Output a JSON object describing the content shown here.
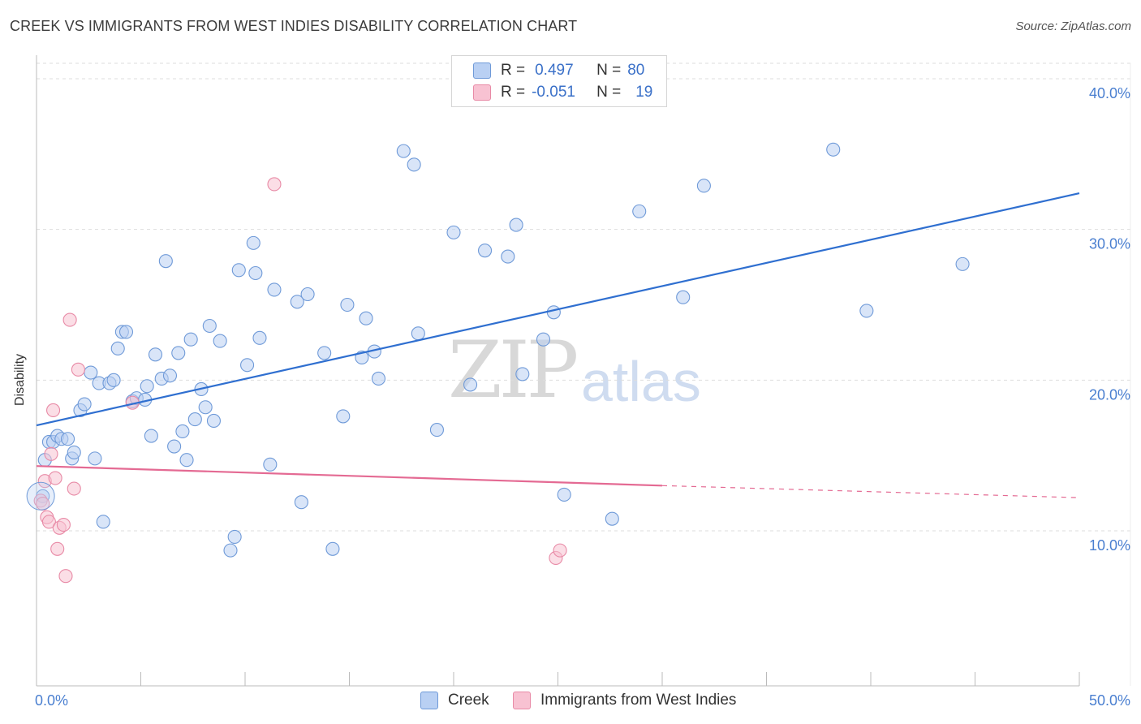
{
  "title": "CREEK VS IMMIGRANTS FROM WEST INDIES DISABILITY CORRELATION CHART",
  "source": "Source: ZipAtlas.com",
  "watermark": {
    "zip": "ZIP",
    "atlas": "atlas"
  },
  "legend": {
    "rows": [
      {
        "r_label": "R =",
        "r_value": "0.497",
        "n_label": "N =",
        "n_value": "80"
      },
      {
        "r_label": "R =",
        "r_value": "-0.051",
        "n_label": "N =",
        "n_value": "19"
      }
    ]
  },
  "bottom_legend": [
    "Creek",
    "Immigrants from West Indies"
  ],
  "colors": {
    "creek_fill": "#b9d0f3",
    "creek_stroke": "#6f9ad8",
    "creek_line": "#2f6fd0",
    "wi_fill": "#f8c2d2",
    "wi_stroke": "#e88aa6",
    "wi_line": "#e46a93",
    "grid": "#dddddd",
    "tick_text": "#4a7fd0"
  },
  "chart_data": {
    "type": "scatter",
    "title": "CREEK VS IMMIGRANTS FROM WEST INDIES DISABILITY CORRELATION CHART",
    "xlabel": "",
    "ylabel": "Disability",
    "xlim": [
      0,
      50
    ],
    "ylim": [
      0,
      42
    ],
    "x_tick_labels": [
      "0.0%",
      "50.0%"
    ],
    "y_ticks": [
      10,
      20,
      30,
      40
    ],
    "y_tick_labels": [
      "10.0%",
      "20.0%",
      "30.0%",
      "40.0%"
    ],
    "grid": true,
    "legend_position": "top-center",
    "series": [
      {
        "name": "Creek",
        "R": 0.497,
        "N": 80,
        "trend": {
          "x0": 0,
          "y0": 17.0,
          "x1": 50,
          "y1": 32.4
        },
        "points": [
          [
            0.3,
            12.3
          ],
          [
            0.4,
            14.7
          ],
          [
            0.6,
            15.9
          ],
          [
            0.8,
            15.9
          ],
          [
            1.0,
            16.3
          ],
          [
            1.2,
            16.1
          ],
          [
            1.5,
            16.1
          ],
          [
            1.7,
            14.8
          ],
          [
            1.8,
            15.2
          ],
          [
            2.1,
            18.0
          ],
          [
            2.3,
            18.4
          ],
          [
            2.6,
            20.5
          ],
          [
            2.8,
            14.8
          ],
          [
            3.0,
            19.8
          ],
          [
            3.2,
            10.6
          ],
          [
            3.5,
            19.8
          ],
          [
            3.7,
            20.0
          ],
          [
            3.9,
            22.1
          ],
          [
            4.1,
            23.2
          ],
          [
            4.3,
            23.2
          ],
          [
            4.6,
            18.6
          ],
          [
            4.8,
            18.8
          ],
          [
            5.2,
            18.7
          ],
          [
            5.3,
            19.6
          ],
          [
            5.5,
            16.3
          ],
          [
            5.7,
            21.7
          ],
          [
            6.0,
            20.1
          ],
          [
            6.2,
            27.9
          ],
          [
            6.4,
            20.3
          ],
          [
            6.6,
            15.6
          ],
          [
            6.8,
            21.8
          ],
          [
            7.0,
            16.6
          ],
          [
            7.2,
            14.7
          ],
          [
            7.4,
            22.7
          ],
          [
            7.6,
            17.4
          ],
          [
            7.9,
            19.4
          ],
          [
            8.1,
            18.2
          ],
          [
            8.3,
            23.6
          ],
          [
            8.5,
            17.3
          ],
          [
            8.8,
            22.6
          ],
          [
            9.3,
            8.7
          ],
          [
            9.5,
            9.6
          ],
          [
            9.7,
            27.3
          ],
          [
            10.1,
            21.0
          ],
          [
            10.4,
            29.1
          ],
          [
            10.5,
            27.1
          ],
          [
            10.7,
            22.8
          ],
          [
            11.2,
            14.4
          ],
          [
            11.4,
            26.0
          ],
          [
            12.5,
            25.2
          ],
          [
            12.7,
            11.9
          ],
          [
            13.0,
            25.7
          ],
          [
            13.8,
            21.8
          ],
          [
            14.2,
            8.8
          ],
          [
            14.7,
            17.6
          ],
          [
            14.9,
            25.0
          ],
          [
            15.6,
            21.5
          ],
          [
            15.8,
            24.1
          ],
          [
            16.2,
            21.9
          ],
          [
            16.4,
            20.1
          ],
          [
            17.6,
            35.2
          ],
          [
            18.1,
            34.3
          ],
          [
            18.3,
            23.1
          ],
          [
            19.2,
            16.7
          ],
          [
            20.0,
            29.8
          ],
          [
            20.8,
            19.7
          ],
          [
            21.5,
            28.6
          ],
          [
            22.6,
            28.2
          ],
          [
            23.0,
            30.3
          ],
          [
            23.3,
            20.4
          ],
          [
            24.3,
            22.7
          ],
          [
            24.8,
            24.5
          ],
          [
            25.3,
            12.4
          ],
          [
            27.6,
            10.8
          ],
          [
            28.9,
            31.2
          ],
          [
            31.0,
            25.5
          ],
          [
            32.0,
            32.9
          ],
          [
            38.2,
            35.3
          ],
          [
            39.8,
            24.6
          ],
          [
            44.4,
            27.7
          ]
        ]
      },
      {
        "name": "Immigrants from West Indies",
        "R": -0.051,
        "N": 19,
        "trend": {
          "x0": 0,
          "y0": 14.3,
          "x1": 30,
          "y1": 13.0,
          "dashed_to_x": 50,
          "dashed_to_y": 12.2
        },
        "points": [
          [
            0.2,
            12.0
          ],
          [
            0.3,
            11.8
          ],
          [
            0.4,
            13.3
          ],
          [
            0.5,
            10.9
          ],
          [
            0.6,
            10.6
          ],
          [
            0.7,
            15.1
          ],
          [
            0.8,
            18.0
          ],
          [
            0.9,
            13.5
          ],
          [
            1.0,
            8.8
          ],
          [
            1.1,
            10.2
          ],
          [
            1.3,
            10.4
          ],
          [
            1.4,
            7.0
          ],
          [
            1.6,
            24.0
          ],
          [
            1.8,
            12.8
          ],
          [
            2.0,
            20.7
          ],
          [
            4.6,
            18.5
          ],
          [
            11.4,
            33.0
          ],
          [
            24.9,
            8.2
          ],
          [
            25.1,
            8.7
          ]
        ]
      }
    ]
  }
}
